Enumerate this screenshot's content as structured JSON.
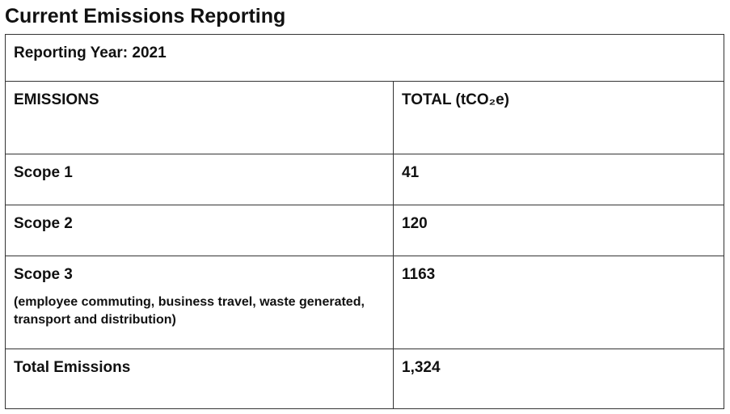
{
  "header": {
    "title": "Current Emissions Reporting"
  },
  "table": {
    "caption": "Reporting Year: 2021",
    "columns": [
      "EMISSIONS",
      "TOTAL (tCO₂e)"
    ],
    "rows": [
      {
        "label": "Scope 1",
        "value": 41
      },
      {
        "label": "Scope 2",
        "value": 120
      },
      {
        "label": "Scope 3",
        "note": "(employee commuting, business travel, waste generated, transport and distribution)",
        "value": 1163
      },
      {
        "label": "Total Emissions",
        "value": "1,324"
      }
    ]
  }
}
